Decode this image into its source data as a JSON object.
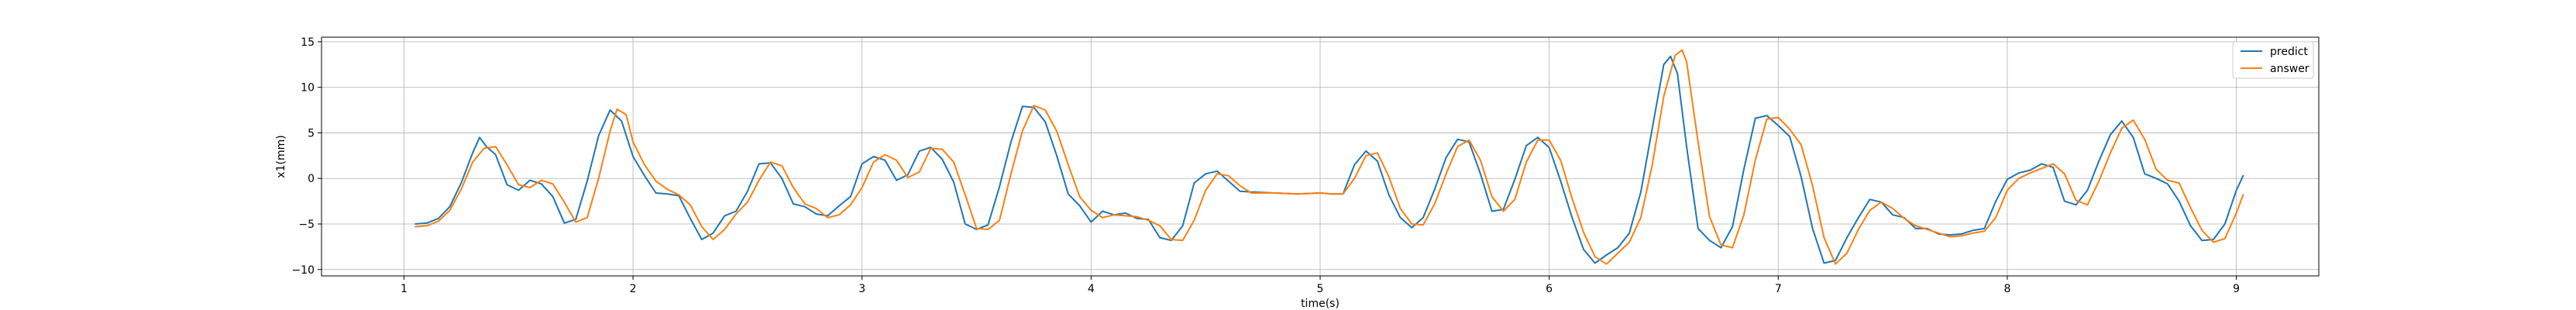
{
  "chart_data": {
    "type": "line",
    "title": "",
    "xlabel": "time(s)",
    "ylabel": "x1(mm)",
    "xlim": [
      0.64,
      9.36
    ],
    "ylim": [
      -10.7,
      15.5
    ],
    "xticks": [
      1,
      2,
      3,
      4,
      5,
      6,
      7,
      8,
      9
    ],
    "yticks": [
      -10,
      -5,
      0,
      5,
      10,
      15
    ],
    "grid": true,
    "legend_position": "top-right",
    "series": [
      {
        "name": "predict",
        "color": "#1f77b4",
        "points": [
          [
            1.05,
            -5.0
          ],
          [
            1.1,
            -4.9
          ],
          [
            1.15,
            -4.4
          ],
          [
            1.2,
            -3.1
          ],
          [
            1.25,
            -0.5
          ],
          [
            1.3,
            2.8
          ],
          [
            1.33,
            4.5
          ],
          [
            1.36,
            3.5
          ],
          [
            1.4,
            2.6
          ],
          [
            1.45,
            -0.7
          ],
          [
            1.5,
            -1.3
          ],
          [
            1.55,
            -0.2
          ],
          [
            1.6,
            -0.6
          ],
          [
            1.65,
            -2.0
          ],
          [
            1.7,
            -4.9
          ],
          [
            1.75,
            -4.5
          ],
          [
            1.8,
            -0.3
          ],
          [
            1.85,
            4.7
          ],
          [
            1.9,
            7.5
          ],
          [
            1.95,
            6.3
          ],
          [
            2.0,
            2.4
          ],
          [
            2.05,
            0.3
          ],
          [
            2.1,
            -1.6
          ],
          [
            2.15,
            -1.7
          ],
          [
            2.2,
            -1.9
          ],
          [
            2.25,
            -4.4
          ],
          [
            2.3,
            -6.7
          ],
          [
            2.35,
            -6.0
          ],
          [
            2.4,
            -4.1
          ],
          [
            2.45,
            -3.6
          ],
          [
            2.5,
            -1.4
          ],
          [
            2.55,
            1.6
          ],
          [
            2.6,
            1.7
          ],
          [
            2.65,
            0.0
          ],
          [
            2.7,
            -2.8
          ],
          [
            2.75,
            -3.1
          ],
          [
            2.8,
            -3.9
          ],
          [
            2.85,
            -4.1
          ],
          [
            2.9,
            -3.0
          ],
          [
            2.95,
            -2.0
          ],
          [
            3.0,
            1.6
          ],
          [
            3.05,
            2.4
          ],
          [
            3.1,
            2.0
          ],
          [
            3.15,
            -0.2
          ],
          [
            3.2,
            0.4
          ],
          [
            3.25,
            3.0
          ],
          [
            3.3,
            3.4
          ],
          [
            3.35,
            2.1
          ],
          [
            3.4,
            -0.4
          ],
          [
            3.45,
            -5.0
          ],
          [
            3.5,
            -5.6
          ],
          [
            3.55,
            -5.1
          ],
          [
            3.6,
            -0.9
          ],
          [
            3.65,
            4.0
          ],
          [
            3.7,
            7.9
          ],
          [
            3.75,
            7.8
          ],
          [
            3.8,
            6.2
          ],
          [
            3.85,
            2.5
          ],
          [
            3.9,
            -1.7
          ],
          [
            3.95,
            -3.0
          ],
          [
            4.0,
            -4.8
          ],
          [
            4.05,
            -3.6
          ],
          [
            4.1,
            -4.0
          ],
          [
            4.15,
            -3.8
          ],
          [
            4.2,
            -4.4
          ],
          [
            4.25,
            -4.5
          ],
          [
            4.3,
            -6.5
          ],
          [
            4.35,
            -6.8
          ],
          [
            4.4,
            -5.2
          ],
          [
            4.45,
            -0.5
          ],
          [
            4.5,
            0.5
          ],
          [
            4.55,
            0.8
          ],
          [
            4.6,
            -0.3
          ],
          [
            4.65,
            -1.4
          ],
          [
            4.7,
            -1.5
          ],
          [
            4.8,
            -1.6
          ],
          [
            4.9,
            -1.7
          ],
          [
            5.0,
            -1.6
          ],
          [
            5.05,
            -1.7
          ],
          [
            5.1,
            -1.7
          ],
          [
            5.15,
            1.5
          ],
          [
            5.2,
            3.0
          ],
          [
            5.25,
            1.9
          ],
          [
            5.3,
            -1.8
          ],
          [
            5.35,
            -4.3
          ],
          [
            5.4,
            -5.4
          ],
          [
            5.45,
            -4.3
          ],
          [
            5.5,
            -1.2
          ],
          [
            5.55,
            2.3
          ],
          [
            5.6,
            4.3
          ],
          [
            5.65,
            4.0
          ],
          [
            5.7,
            0.5
          ],
          [
            5.75,
            -3.6
          ],
          [
            5.8,
            -3.4
          ],
          [
            5.85,
            -0.1
          ],
          [
            5.9,
            3.6
          ],
          [
            5.95,
            4.5
          ],
          [
            6.0,
            3.4
          ],
          [
            6.05,
            -0.3
          ],
          [
            6.1,
            -4.3
          ],
          [
            6.15,
            -7.8
          ],
          [
            6.2,
            -9.3
          ],
          [
            6.25,
            -8.4
          ],
          [
            6.3,
            -7.6
          ],
          [
            6.35,
            -6.0
          ],
          [
            6.4,
            -1.5
          ],
          [
            6.45,
            5.5
          ],
          [
            6.5,
            12.5
          ],
          [
            6.53,
            13.4
          ],
          [
            6.56,
            11.5
          ],
          [
            6.6,
            3.5
          ],
          [
            6.65,
            -5.5
          ],
          [
            6.7,
            -6.8
          ],
          [
            6.75,
            -7.6
          ],
          [
            6.8,
            -5.3
          ],
          [
            6.85,
            1.0
          ],
          [
            6.9,
            6.6
          ],
          [
            6.95,
            6.9
          ],
          [
            7.0,
            5.8
          ],
          [
            7.05,
            4.6
          ],
          [
            7.1,
            0.2
          ],
          [
            7.15,
            -5.5
          ],
          [
            7.2,
            -9.3
          ],
          [
            7.25,
            -9.0
          ],
          [
            7.3,
            -6.5
          ],
          [
            7.35,
            -4.3
          ],
          [
            7.4,
            -2.3
          ],
          [
            7.45,
            -2.6
          ],
          [
            7.5,
            -4.0
          ],
          [
            7.55,
            -4.3
          ],
          [
            7.6,
            -5.5
          ],
          [
            7.65,
            -5.5
          ],
          [
            7.7,
            -6.1
          ],
          [
            7.75,
            -6.2
          ],
          [
            7.8,
            -6.1
          ],
          [
            7.85,
            -5.7
          ],
          [
            7.9,
            -5.5
          ],
          [
            7.95,
            -2.5
          ],
          [
            8.0,
            -0.1
          ],
          [
            8.05,
            0.6
          ],
          [
            8.1,
            0.9
          ],
          [
            8.15,
            1.6
          ],
          [
            8.2,
            1.2
          ],
          [
            8.25,
            -2.5
          ],
          [
            8.3,
            -2.9
          ],
          [
            8.35,
            -1.3
          ],
          [
            8.4,
            1.9
          ],
          [
            8.45,
            4.8
          ],
          [
            8.5,
            6.3
          ],
          [
            8.55,
            4.5
          ],
          [
            8.6,
            0.5
          ],
          [
            8.65,
            0.0
          ],
          [
            8.7,
            -0.6
          ],
          [
            8.75,
            -2.5
          ],
          [
            8.8,
            -5.2
          ],
          [
            8.85,
            -6.8
          ],
          [
            8.9,
            -6.7
          ],
          [
            8.95,
            -5.0
          ],
          [
            9.0,
            -1.3
          ],
          [
            9.03,
            0.3
          ]
        ]
      },
      {
        "name": "answer",
        "color": "#ff7f0e",
        "points": [
          [
            1.05,
            -5.3
          ],
          [
            1.1,
            -5.2
          ],
          [
            1.15,
            -4.7
          ],
          [
            1.2,
            -3.5
          ],
          [
            1.25,
            -1.2
          ],
          [
            1.3,
            1.8
          ],
          [
            1.35,
            3.3
          ],
          [
            1.4,
            3.5
          ],
          [
            1.45,
            1.5
          ],
          [
            1.5,
            -0.7
          ],
          [
            1.55,
            -1.0
          ],
          [
            1.6,
            -0.2
          ],
          [
            1.65,
            -0.6
          ],
          [
            1.7,
            -2.6
          ],
          [
            1.75,
            -4.8
          ],
          [
            1.8,
            -4.3
          ],
          [
            1.85,
            0.0
          ],
          [
            1.9,
            5.2
          ],
          [
            1.93,
            7.6
          ],
          [
            1.97,
            7.0
          ],
          [
            2.0,
            4.0
          ],
          [
            2.05,
            1.5
          ],
          [
            2.1,
            -0.3
          ],
          [
            2.15,
            -1.2
          ],
          [
            2.2,
            -1.8
          ],
          [
            2.25,
            -2.9
          ],
          [
            2.3,
            -5.3
          ],
          [
            2.35,
            -6.7
          ],
          [
            2.4,
            -5.6
          ],
          [
            2.45,
            -3.9
          ],
          [
            2.5,
            -2.6
          ],
          [
            2.55,
            -0.2
          ],
          [
            2.6,
            1.8
          ],
          [
            2.65,
            1.4
          ],
          [
            2.7,
            -1.0
          ],
          [
            2.75,
            -2.8
          ],
          [
            2.8,
            -3.3
          ],
          [
            2.85,
            -4.3
          ],
          [
            2.9,
            -4.0
          ],
          [
            2.95,
            -2.9
          ],
          [
            3.0,
            -1.0
          ],
          [
            3.05,
            1.8
          ],
          [
            3.1,
            2.6
          ],
          [
            3.15,
            2.0
          ],
          [
            3.2,
            0.1
          ],
          [
            3.25,
            0.7
          ],
          [
            3.3,
            3.3
          ],
          [
            3.35,
            3.2
          ],
          [
            3.4,
            1.8
          ],
          [
            3.45,
            -1.8
          ],
          [
            3.5,
            -5.5
          ],
          [
            3.55,
            -5.6
          ],
          [
            3.6,
            -4.6
          ],
          [
            3.65,
            0.5
          ],
          [
            3.7,
            5.2
          ],
          [
            3.75,
            8.0
          ],
          [
            3.8,
            7.5
          ],
          [
            3.85,
            5.2
          ],
          [
            3.9,
            1.5
          ],
          [
            3.95,
            -2.0
          ],
          [
            4.0,
            -3.5
          ],
          [
            4.05,
            -4.3
          ],
          [
            4.1,
            -4.0
          ],
          [
            4.15,
            -4.1
          ],
          [
            4.2,
            -4.2
          ],
          [
            4.25,
            -4.6
          ],
          [
            4.3,
            -5.2
          ],
          [
            4.35,
            -6.7
          ],
          [
            4.4,
            -6.8
          ],
          [
            4.45,
            -4.6
          ],
          [
            4.5,
            -1.3
          ],
          [
            4.55,
            0.5
          ],
          [
            4.6,
            0.3
          ],
          [
            4.65,
            -0.8
          ],
          [
            4.7,
            -1.6
          ],
          [
            4.8,
            -1.6
          ],
          [
            4.9,
            -1.7
          ],
          [
            5.0,
            -1.6
          ],
          [
            5.05,
            -1.7
          ],
          [
            5.1,
            -1.7
          ],
          [
            5.15,
            0.0
          ],
          [
            5.2,
            2.5
          ],
          [
            5.25,
            2.8
          ],
          [
            5.3,
            0.2
          ],
          [
            5.35,
            -3.3
          ],
          [
            5.4,
            -5.0
          ],
          [
            5.45,
            -5.1
          ],
          [
            5.5,
            -2.8
          ],
          [
            5.55,
            0.5
          ],
          [
            5.6,
            3.5
          ],
          [
            5.65,
            4.2
          ],
          [
            5.7,
            2.0
          ],
          [
            5.75,
            -2.0
          ],
          [
            5.8,
            -3.6
          ],
          [
            5.85,
            -2.3
          ],
          [
            5.9,
            1.8
          ],
          [
            5.95,
            4.2
          ],
          [
            6.0,
            4.2
          ],
          [
            6.05,
            2.0
          ],
          [
            6.1,
            -2.2
          ],
          [
            6.15,
            -5.9
          ],
          [
            6.2,
            -8.6
          ],
          [
            6.25,
            -9.4
          ],
          [
            6.3,
            -8.2
          ],
          [
            6.35,
            -7.0
          ],
          [
            6.4,
            -4.3
          ],
          [
            6.45,
            1.5
          ],
          [
            6.5,
            9.0
          ],
          [
            6.55,
            13.5
          ],
          [
            6.58,
            14.1
          ],
          [
            6.6,
            12.8
          ],
          [
            6.65,
            4.0
          ],
          [
            6.7,
            -4.2
          ],
          [
            6.75,
            -7.3
          ],
          [
            6.8,
            -7.6
          ],
          [
            6.85,
            -4.0
          ],
          [
            6.9,
            2.0
          ],
          [
            6.95,
            6.5
          ],
          [
            7.0,
            6.7
          ],
          [
            7.05,
            5.4
          ],
          [
            7.1,
            3.7
          ],
          [
            7.15,
            -0.8
          ],
          [
            7.2,
            -6.5
          ],
          [
            7.25,
            -9.4
          ],
          [
            7.3,
            -8.2
          ],
          [
            7.35,
            -5.6
          ],
          [
            7.4,
            -3.5
          ],
          [
            7.45,
            -2.6
          ],
          [
            7.5,
            -3.3
          ],
          [
            7.55,
            -4.4
          ],
          [
            7.6,
            -5.2
          ],
          [
            7.65,
            -5.6
          ],
          [
            7.7,
            -6.0
          ],
          [
            7.75,
            -6.4
          ],
          [
            7.8,
            -6.3
          ],
          [
            7.85,
            -6.0
          ],
          [
            7.9,
            -5.8
          ],
          [
            7.95,
            -4.3
          ],
          [
            8.0,
            -1.3
          ],
          [
            8.05,
            0.0
          ],
          [
            8.1,
            0.6
          ],
          [
            8.15,
            1.1
          ],
          [
            8.2,
            1.6
          ],
          [
            8.25,
            0.5
          ],
          [
            8.3,
            -2.4
          ],
          [
            8.35,
            -2.9
          ],
          [
            8.4,
            -0.3
          ],
          [
            8.45,
            2.8
          ],
          [
            8.5,
            5.5
          ],
          [
            8.55,
            6.4
          ],
          [
            8.6,
            4.3
          ],
          [
            8.65,
            1.0
          ],
          [
            8.7,
            -0.2
          ],
          [
            8.75,
            -0.5
          ],
          [
            8.8,
            -3.2
          ],
          [
            8.85,
            -5.7
          ],
          [
            8.9,
            -7.0
          ],
          [
            8.95,
            -6.6
          ],
          [
            9.0,
            -3.8
          ],
          [
            9.03,
            -1.8
          ]
        ]
      }
    ]
  }
}
